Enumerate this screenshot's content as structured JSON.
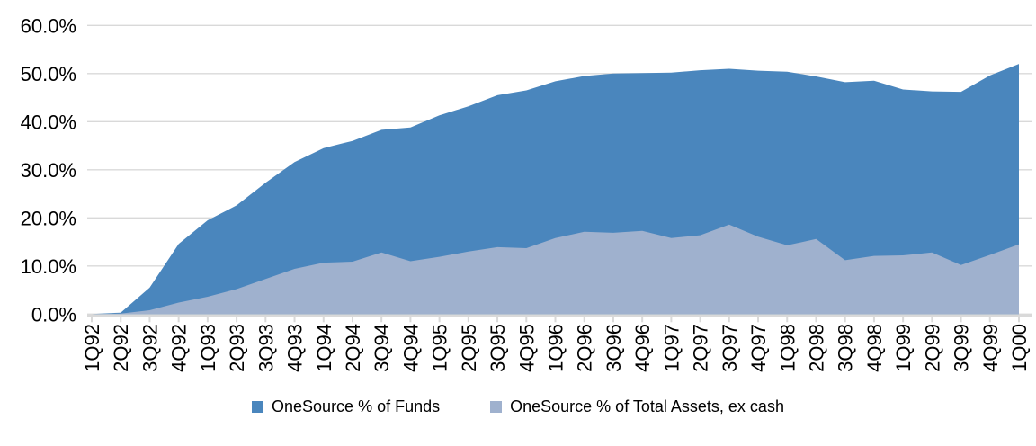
{
  "chart_data": {
    "type": "area",
    "title": "",
    "xlabel": "",
    "ylabel": "",
    "categories": [
      "1Q92",
      "2Q92",
      "3Q92",
      "4Q92",
      "1Q93",
      "2Q93",
      "3Q93",
      "4Q93",
      "1Q94",
      "2Q94",
      "3Q94",
      "4Q94",
      "1Q95",
      "2Q95",
      "3Q95",
      "4Q95",
      "1Q96",
      "2Q96",
      "3Q96",
      "4Q96",
      "1Q97",
      "2Q97",
      "3Q97",
      "4Q97",
      "1Q98",
      "2Q98",
      "3Q98",
      "4Q98",
      "1Q99",
      "2Q99",
      "3Q99",
      "4Q99",
      "1Q00"
    ],
    "series": [
      {
        "name": "OneSource % of Funds",
        "color": "#4a86bd",
        "values": [
          0.0,
          0.3,
          5.5,
          14.6,
          19.5,
          22.6,
          27.3,
          31.6,
          34.5,
          36.0,
          38.3,
          38.8,
          41.3,
          43.2,
          45.5,
          46.5,
          48.4,
          49.5,
          50.0,
          50.1,
          50.2,
          50.7,
          51.0,
          50.6,
          50.4,
          49.4,
          48.2,
          48.5,
          46.7,
          46.3,
          46.2,
          49.6,
          52.0
        ]
      },
      {
        "name": "OneSource % of Total Assets, ex cash",
        "color": "#9fb1ce",
        "values": [
          0.0,
          0.1,
          0.8,
          2.4,
          3.6,
          5.2,
          7.3,
          9.4,
          10.7,
          10.9,
          12.8,
          11.0,
          11.9,
          13.0,
          13.9,
          13.7,
          15.8,
          17.1,
          16.9,
          17.3,
          15.8,
          16.4,
          18.6,
          16.1,
          14.3,
          15.6,
          11.2,
          12.1,
          12.2,
          12.8,
          10.2,
          12.3,
          14.5
        ]
      }
    ],
    "y_tick_labels": [
      "0.0%",
      "10.0%",
      "20.0%",
      "30.0%",
      "40.0%",
      "50.0%",
      "60.0%"
    ],
    "ylim": [
      0,
      60
    ],
    "y_tick_step": 10,
    "grid": "horizontal",
    "legend_position": "bottom",
    "colors": {
      "grid": "#d9d9d9",
      "axis": "#d9d9d9",
      "text": "#000000"
    }
  }
}
